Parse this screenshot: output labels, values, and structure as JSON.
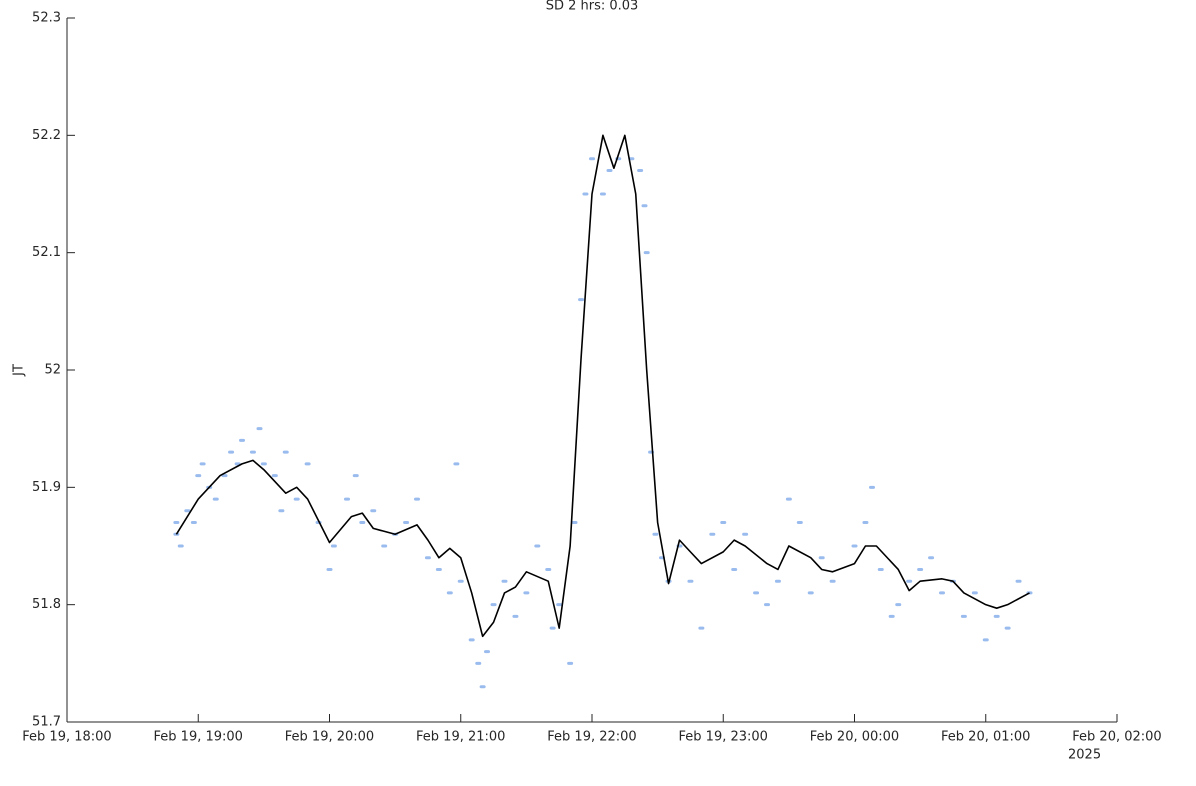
{
  "chart_data": {
    "type": "line",
    "title": "SD 2 hrs: 0.03",
    "ylabel": "JT",
    "x_secondary_label": "2025",
    "xlim": [
      "2025-02-19 18:00",
      "2025-02-20 02:00"
    ],
    "xticks": [
      {
        "value": "2025-02-19 18:00",
        "label": "Feb 19, 18:00"
      },
      {
        "value": "2025-02-19 19:00",
        "label": "Feb 19, 19:00"
      },
      {
        "value": "2025-02-19 20:00",
        "label": "Feb 19, 20:00"
      },
      {
        "value": "2025-02-19 21:00",
        "label": "Feb 19, 21:00"
      },
      {
        "value": "2025-02-19 22:00",
        "label": "Feb 19, 22:00"
      },
      {
        "value": "2025-02-19 23:00",
        "label": "Feb 19, 23:00"
      },
      {
        "value": "2025-02-20 00:00",
        "label": "Feb 20, 00:00"
      },
      {
        "value": "2025-02-20 01:00",
        "label": "Feb 20, 01:00"
      },
      {
        "value": "2025-02-20 02:00",
        "label": "Feb 20, 02:00"
      }
    ],
    "ylim": [
      51.7,
      52.3
    ],
    "yticks": [
      51.7,
      51.8,
      51.9,
      52,
      52.1,
      52.2,
      52.3
    ],
    "grid": false,
    "series": [
      {
        "type": "scatter",
        "color": "#99bbee",
        "x": [
          "2025-02-19 18:50",
          "2025-02-19 18:50",
          "2025-02-19 18:52",
          "2025-02-19 18:55",
          "2025-02-19 18:58",
          "2025-02-19 19:00",
          "2025-02-19 19:02",
          "2025-02-19 19:05",
          "2025-02-19 19:08",
          "2025-02-19 19:12",
          "2025-02-19 19:15",
          "2025-02-19 19:18",
          "2025-02-19 19:20",
          "2025-02-19 19:25",
          "2025-02-19 19:28",
          "2025-02-19 19:30",
          "2025-02-19 19:35",
          "2025-02-19 19:38",
          "2025-02-19 19:40",
          "2025-02-19 19:45",
          "2025-02-19 19:50",
          "2025-02-19 19:55",
          "2025-02-19 20:00",
          "2025-02-19 20:02",
          "2025-02-19 20:08",
          "2025-02-19 20:12",
          "2025-02-19 20:15",
          "2025-02-19 20:20",
          "2025-02-19 20:25",
          "2025-02-19 20:30",
          "2025-02-19 20:35",
          "2025-02-19 20:40",
          "2025-02-19 20:45",
          "2025-02-19 20:50",
          "2025-02-19 20:55",
          "2025-02-19 20:58",
          "2025-02-19 21:00",
          "2025-02-19 21:05",
          "2025-02-19 21:08",
          "2025-02-19 21:10",
          "2025-02-19 21:12",
          "2025-02-19 21:15",
          "2025-02-19 21:20",
          "2025-02-19 21:25",
          "2025-02-19 21:30",
          "2025-02-19 21:35",
          "2025-02-19 21:40",
          "2025-02-19 21:42",
          "2025-02-19 21:45",
          "2025-02-19 21:50",
          "2025-02-19 21:52",
          "2025-02-19 21:55",
          "2025-02-19 21:57",
          "2025-02-19 22:00",
          "2025-02-19 22:05",
          "2025-02-19 22:08",
          "2025-02-19 22:12",
          "2025-02-19 22:18",
          "2025-02-19 22:22",
          "2025-02-19 22:24",
          "2025-02-19 22:25",
          "2025-02-19 22:27",
          "2025-02-19 22:29",
          "2025-02-19 22:32",
          "2025-02-19 22:35",
          "2025-02-19 22:40",
          "2025-02-19 22:45",
          "2025-02-19 22:50",
          "2025-02-19 22:55",
          "2025-02-19 23:00",
          "2025-02-19 23:05",
          "2025-02-19 23:10",
          "2025-02-19 23:15",
          "2025-02-19 23:20",
          "2025-02-19 23:25",
          "2025-02-19 23:30",
          "2025-02-19 23:35",
          "2025-02-19 23:40",
          "2025-02-19 23:45",
          "2025-02-19 23:50",
          "2025-02-20 00:00",
          "2025-02-20 00:05",
          "2025-02-20 00:08",
          "2025-02-20 00:12",
          "2025-02-20 00:17",
          "2025-02-20 00:20",
          "2025-02-20 00:25",
          "2025-02-20 00:30",
          "2025-02-20 00:35",
          "2025-02-20 00:40",
          "2025-02-20 00:45",
          "2025-02-20 00:50",
          "2025-02-20 00:55",
          "2025-02-20 01:00",
          "2025-02-20 01:05",
          "2025-02-20 01:10",
          "2025-02-20 01:15",
          "2025-02-20 01:20"
        ],
        "values": [
          51.86,
          51.87,
          51.85,
          51.88,
          51.87,
          51.91,
          51.92,
          51.9,
          51.89,
          51.91,
          51.93,
          51.92,
          51.94,
          51.93,
          51.95,
          51.92,
          51.91,
          51.88,
          51.93,
          51.89,
          51.92,
          51.87,
          51.83,
          51.85,
          51.89,
          51.91,
          51.87,
          51.88,
          51.85,
          51.86,
          51.87,
          51.89,
          51.84,
          51.83,
          51.81,
          51.92,
          51.82,
          51.77,
          51.75,
          51.73,
          51.76,
          51.8,
          51.82,
          51.79,
          51.81,
          51.85,
          51.83,
          51.78,
          51.8,
          51.75,
          51.87,
          52.06,
          52.15,
          52.18,
          52.15,
          52.17,
          52.18,
          52.18,
          52.17,
          52.14,
          52.1,
          51.93,
          51.86,
          51.84,
          51.82,
          51.85,
          51.82,
          51.78,
          51.86,
          51.87,
          51.83,
          51.86,
          51.81,
          51.8,
          51.82,
          51.89,
          51.87,
          51.81,
          51.84,
          51.82,
          51.85,
          51.87,
          51.9,
          51.83,
          51.79,
          51.8,
          51.82,
          51.83,
          51.84,
          51.81,
          51.82,
          51.79,
          51.81,
          51.77,
          51.79,
          51.78,
          51.82,
          51.81
        ]
      },
      {
        "type": "line",
        "color": "#000000",
        "x": [
          "2025-02-19 18:50",
          "2025-02-19 19:00",
          "2025-02-19 19:10",
          "2025-02-19 19:20",
          "2025-02-19 19:25",
          "2025-02-19 19:30",
          "2025-02-19 19:40",
          "2025-02-19 19:45",
          "2025-02-19 19:50",
          "2025-02-19 20:00",
          "2025-02-19 20:10",
          "2025-02-19 20:15",
          "2025-02-19 20:20",
          "2025-02-19 20:30",
          "2025-02-19 20:40",
          "2025-02-19 20:45",
          "2025-02-19 20:50",
          "2025-02-19 20:55",
          "2025-02-19 21:00",
          "2025-02-19 21:05",
          "2025-02-19 21:10",
          "2025-02-19 21:15",
          "2025-02-19 21:20",
          "2025-02-19 21:25",
          "2025-02-19 21:30",
          "2025-02-19 21:40",
          "2025-02-19 21:45",
          "2025-02-19 21:50",
          "2025-02-19 21:55",
          "2025-02-19 22:00",
          "2025-02-19 22:05",
          "2025-02-19 22:10",
          "2025-02-19 22:15",
          "2025-02-19 22:20",
          "2025-02-19 22:25",
          "2025-02-19 22:30",
          "2025-02-19 22:35",
          "2025-02-19 22:40",
          "2025-02-19 22:45",
          "2025-02-19 22:50",
          "2025-02-19 23:00",
          "2025-02-19 23:05",
          "2025-02-19 23:10",
          "2025-02-19 23:20",
          "2025-02-19 23:25",
          "2025-02-19 23:30",
          "2025-02-19 23:40",
          "2025-02-19 23:45",
          "2025-02-19 23:50",
          "2025-02-20 00:00",
          "2025-02-20 00:05",
          "2025-02-20 00:10",
          "2025-02-20 00:20",
          "2025-02-20 00:25",
          "2025-02-20 00:30",
          "2025-02-20 00:40",
          "2025-02-20 00:45",
          "2025-02-20 00:50",
          "2025-02-20 01:00",
          "2025-02-20 01:05",
          "2025-02-20 01:10",
          "2025-02-20 01:20"
        ],
        "values": [
          51.86,
          51.89,
          51.91,
          51.92,
          51.923,
          51.915,
          51.895,
          51.9,
          51.89,
          51.853,
          51.875,
          51.878,
          51.865,
          51.86,
          51.868,
          51.855,
          51.84,
          51.848,
          51.84,
          51.81,
          51.773,
          51.785,
          51.81,
          51.815,
          51.828,
          51.82,
          51.78,
          51.85,
          52.01,
          52.15,
          52.2,
          52.172,
          52.2,
          52.15,
          52.0,
          51.87,
          51.818,
          51.855,
          51.845,
          51.835,
          51.845,
          51.855,
          51.85,
          51.835,
          51.83,
          51.85,
          51.84,
          51.83,
          51.828,
          51.835,
          51.85,
          51.85,
          51.83,
          51.812,
          51.82,
          51.822,
          51.82,
          51.81,
          51.8,
          51.797,
          51.8,
          51.81
        ]
      }
    ]
  }
}
